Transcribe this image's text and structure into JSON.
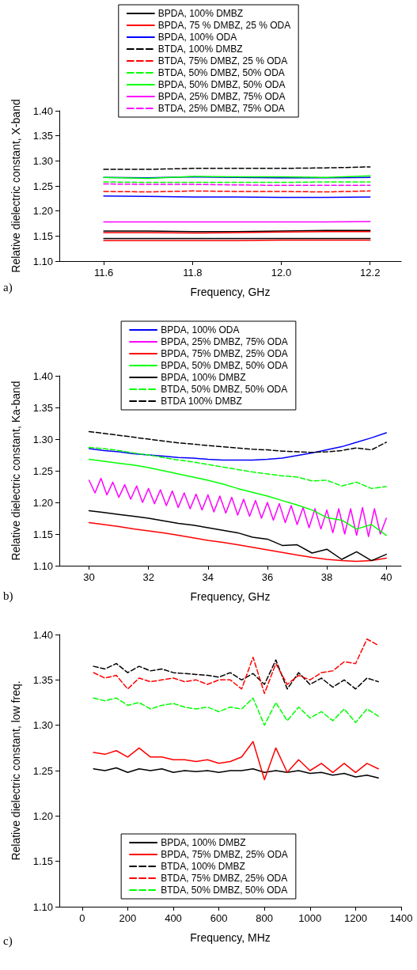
{
  "chart_data": [
    {
      "type": "line",
      "xlabel": "Frequency, GHz",
      "ylabel": "Relative dielectric constant, X-band",
      "annotations": [
        "a)"
      ],
      "marker": "none",
      "legend": "top",
      "grid": false,
      "x": [
        11.6,
        11.7,
        11.8,
        11.9,
        12.0,
        12.1,
        12.2
      ],
      "xlim": [
        11.5,
        12.27
      ],
      "xticks": [
        11.6,
        11.8,
        {
          "value": 12.0,
          "label": "12.0"
        },
        12.2
      ],
      "ylim": [
        1.1,
        1.4
      ],
      "yticks": [
        {
          "value": 1.1,
          "label": "1.10"
        },
        1.15,
        {
          "value": 1.2,
          "label": "1.20"
        },
        1.25,
        {
          "value": 1.3,
          "label": "1.30"
        },
        1.35,
        {
          "value": 1.4,
          "label": "1.40"
        }
      ],
      "series": [
        {
          "name": "BPDA, 100% DMBZ",
          "color": "#000000",
          "line_style": "solid",
          "values": [
            1.16,
            1.16,
            1.159,
            1.159,
            1.16,
            1.161,
            1.161
          ]
        },
        {
          "name": "BPDA, 75 % DMBZ, 25 % ODA",
          "color": "#ff0000",
          "line_style": "solid",
          "values": [
            1.157,
            1.157,
            1.156,
            1.157,
            1.158,
            1.159,
            1.159
          ]
        },
        {
          "name": "BPDA, 100% ODA",
          "color": "#0000ff",
          "line_style": "solid",
          "values": [
            1.267,
            1.266,
            1.268,
            1.267,
            1.266,
            1.266,
            1.267
          ]
        },
        {
          "name": "BTDA, 100% DMBZ",
          "color": "#000000",
          "line_style": "dashed",
          "values": [
            1.283,
            1.283,
            1.285,
            1.285,
            1.285,
            1.286,
            1.288
          ]
        },
        {
          "name": "BTDA, 75% DMBZ, 25 % ODA",
          "color": "#ff0000",
          "line_style": "dashed",
          "values": [
            1.239,
            1.238,
            1.24,
            1.239,
            1.239,
            1.238,
            1.24
          ]
        },
        {
          "name": "BTDA, 50% DMBZ, 50% ODA",
          "color": "#00ff00",
          "line_style": "dashed",
          "values": [
            1.258,
            1.257,
            1.257,
            1.257,
            1.257,
            1.258,
            1.258
          ]
        },
        {
          "name": "BPDA, 50% DMBZ, 50% ODA",
          "color": "#00ff00",
          "line_style": "solid",
          "values": [
            1.267,
            1.265,
            1.269,
            1.268,
            1.268,
            1.267,
            1.27
          ]
        },
        {
          "name": "BPDA, 25% DMBZ, 75% ODA",
          "color": "#ff00ff",
          "line_style": "solid",
          "values": [
            1.178,
            1.178,
            1.178,
            1.178,
            1.178,
            1.178,
            1.179
          ]
        },
        {
          "name": "BTDA, 25% DMBZ, 75% ODA",
          "color": "#ff00ff",
          "line_style": "dashed",
          "values": [
            1.254,
            1.253,
            1.253,
            1.252,
            1.251,
            1.251,
            1.251
          ]
        },
        {
          "color": "#0000ff",
          "line_style": "solid",
          "values": [
            1.23,
            1.229,
            1.228,
            1.228,
            1.227,
            1.227,
            1.228
          ]
        },
        {
          "color": "#000000",
          "line_style": "solid",
          "values": [
            1.145,
            1.145,
            1.145,
            1.145,
            1.145,
            1.145,
            1.145
          ]
        },
        {
          "color": "#ff0000",
          "line_style": "solid",
          "values": [
            1.141,
            1.141,
            1.141,
            1.141,
            1.142,
            1.142,
            1.142
          ]
        }
      ]
    },
    {
      "type": "line",
      "xlabel": "Frequency, GHz",
      "ylabel": "Relative dielectric constant, Ka-band",
      "annotations": [
        "b)"
      ],
      "marker": "none",
      "legend": "top",
      "grid": false,
      "x": [
        30,
        30.5,
        31,
        31.5,
        32,
        32.5,
        33,
        33.5,
        34,
        34.5,
        35,
        35.5,
        36,
        36.5,
        37,
        37.5,
        38,
        38.5,
        39,
        39.5,
        40
      ],
      "xlim": [
        29,
        40.5
      ],
      "xticks": [
        30,
        32,
        34,
        36,
        38,
        40
      ],
      "ylim": [
        1.1,
        1.4
      ],
      "yticks": [
        {
          "value": 1.1,
          "label": "1.10"
        },
        1.15,
        {
          "value": 1.2,
          "label": "1.20"
        },
        1.25,
        {
          "value": 1.3,
          "label": "1.30"
        },
        1.35,
        {
          "value": 1.4,
          "label": "1.40"
        }
      ],
      "series": [
        {
          "name": "BPDA, 100% ODA",
          "color": "#0000ff",
          "line_style": "solid",
          "values": [
            1.285,
            1.282,
            1.28,
            1.277,
            1.275,
            1.273,
            1.271,
            1.27,
            1.268,
            1.267,
            1.267,
            1.267,
            1.268,
            1.27,
            1.274,
            1.278,
            1.283,
            1.288,
            1.295,
            1.302,
            1.31
          ]
        },
        {
          "name": "BPDA, 25% DMBZ, 75% ODA",
          "color": "#ff00ff",
          "line_style": "solid",
          "x": [
            30,
            30.2,
            30.4,
            30.6,
            30.8,
            31,
            31.2,
            31.4,
            31.6,
            31.8,
            32,
            32.2,
            32.4,
            32.6,
            32.8,
            33,
            33.2,
            33.4,
            33.6,
            33.8,
            34,
            34.2,
            34.4,
            34.6,
            34.8,
            35,
            35.2,
            35.4,
            35.6,
            35.8,
            36,
            36.2,
            36.4,
            36.6,
            36.8,
            37,
            37.2,
            37.4,
            37.6,
            37.8,
            38,
            38.2,
            38.4,
            38.6,
            38.8,
            39,
            39.2,
            39.4,
            39.6,
            39.8,
            40
          ],
          "values": [
            1.235,
            1.215,
            1.238,
            1.212,
            1.232,
            1.208,
            1.228,
            1.205,
            1.226,
            1.2,
            1.222,
            1.198,
            1.22,
            1.195,
            1.218,
            1.192,
            1.215,
            1.19,
            1.213,
            1.188,
            1.212,
            1.185,
            1.21,
            1.183,
            1.208,
            1.18,
            1.205,
            1.178,
            1.203,
            1.175,
            1.2,
            1.172,
            1.198,
            1.168,
            1.195,
            1.165,
            1.192,
            1.16,
            1.19,
            1.158,
            1.188,
            1.152,
            1.19,
            1.15,
            1.19,
            1.148,
            1.192,
            1.146,
            1.19,
            1.15,
            1.175
          ]
        },
        {
          "name": "BPDA, 75% DMBZ, 25% ODA",
          "color": "#ff0000",
          "line_style": "solid",
          "values": [
            1.168,
            1.165,
            1.162,
            1.158,
            1.155,
            1.152,
            1.148,
            1.144,
            1.14,
            1.137,
            1.133,
            1.129,
            1.125,
            1.121,
            1.117,
            1.113,
            1.11,
            1.108,
            1.107,
            1.108,
            1.112
          ]
        },
        {
          "name": "BPDA, 50% DMBZ, 50% ODA",
          "color": "#00ff00",
          "line_style": "solid",
          "values": [
            1.268,
            1.265,
            1.262,
            1.259,
            1.255,
            1.25,
            1.245,
            1.24,
            1.235,
            1.229,
            1.222,
            1.216,
            1.21,
            1.203,
            1.196,
            1.188,
            1.176,
            1.172,
            1.158,
            1.165,
            1.148
          ]
        },
        {
          "name": "BPDA, 100% DMBZ",
          "color": "#000000",
          "line_style": "solid",
          "values": [
            1.187,
            1.184,
            1.181,
            1.178,
            1.175,
            1.171,
            1.167,
            1.164,
            1.16,
            1.156,
            1.152,
            1.145,
            1.142,
            1.132,
            1.133,
            1.12,
            1.126,
            1.11,
            1.122,
            1.108,
            1.118
          ]
        },
        {
          "name": "BTDA, 50% DMBZ, 50% ODA",
          "color": "#00ff00",
          "line_style": "dashed",
          "values": [
            1.287,
            1.285,
            1.282,
            1.278,
            1.275,
            1.271,
            1.267,
            1.264,
            1.26,
            1.256,
            1.252,
            1.248,
            1.245,
            1.242,
            1.24,
            1.234,
            1.235,
            1.226,
            1.232,
            1.222,
            1.225
          ]
        },
        {
          "name": "BTDA 100% DMBZ",
          "color": "#000000",
          "line_style": "dashed",
          "values": [
            1.312,
            1.309,
            1.306,
            1.303,
            1.3,
            1.297,
            1.294,
            1.292,
            1.29,
            1.288,
            1.286,
            1.284,
            1.283,
            1.281,
            1.28,
            1.279,
            1.28,
            1.282,
            1.286,
            1.283,
            1.295
          ]
        }
      ]
    },
    {
      "type": "line",
      "xlabel": "Frequency, MHz",
      "ylabel": "Relative dielectric constant, low freq.",
      "annotations": [
        "c)"
      ],
      "marker": "none",
      "legend": "bottom",
      "grid": false,
      "x": [
        50,
        100,
        150,
        200,
        250,
        300,
        350,
        400,
        450,
        500,
        550,
        600,
        650,
        700,
        750,
        800,
        850,
        900,
        950,
        1000,
        1050,
        1100,
        1150,
        1200,
        1250,
        1300
      ],
      "xlim": [
        -100,
        1400
      ],
      "xticks": [
        0,
        200,
        400,
        600,
        800,
        1000,
        1200,
        1400
      ],
      "ylim": [
        1.1,
        1.4
      ],
      "yticks": [
        {
          "value": 1.1,
          "label": "1.10"
        },
        1.15,
        {
          "value": 1.2,
          "label": "1.20"
        },
        1.25,
        {
          "value": 1.3,
          "label": "1.30"
        },
        1.35,
        {
          "value": 1.4,
          "label": "1.40"
        }
      ],
      "series": [
        {
          "name": "BPDA, 100% DMBZ",
          "color": "#000000",
          "line_style": "solid",
          "values": [
            1.252,
            1.25,
            1.253,
            1.248,
            1.252,
            1.25,
            1.252,
            1.248,
            1.25,
            1.249,
            1.25,
            1.248,
            1.25,
            1.25,
            1.252,
            1.248,
            1.25,
            1.248,
            1.25,
            1.247,
            1.248,
            1.245,
            1.247,
            1.243,
            1.245,
            1.242
          ]
        },
        {
          "name": "BPDA, 75% DMBZ, 25% ODA",
          "color": "#ff0000",
          "line_style": "solid",
          "values": [
            1.27,
            1.268,
            1.272,
            1.265,
            1.275,
            1.265,
            1.265,
            1.262,
            1.262,
            1.26,
            1.262,
            1.258,
            1.26,
            1.265,
            1.282,
            1.24,
            1.275,
            1.248,
            1.262,
            1.25,
            1.258,
            1.248,
            1.258,
            1.248,
            1.258,
            1.252
          ]
        },
        {
          "name": "BTDA, 100% DMBZ",
          "color": "#000000",
          "line_style": "dashed",
          "values": [
            1.365,
            1.362,
            1.368,
            1.358,
            1.365,
            1.36,
            1.362,
            1.358,
            1.357,
            1.356,
            1.355,
            1.353,
            1.358,
            1.35,
            1.357,
            1.345,
            1.372,
            1.34,
            1.358,
            1.345,
            1.352,
            1.342,
            1.35,
            1.34,
            1.352,
            1.348
          ]
        },
        {
          "name": "BTDA, 75% DMBZ, 25% ODA",
          "color": "#ff0000",
          "line_style": "dashed",
          "values": [
            1.358,
            1.352,
            1.355,
            1.34,
            1.352,
            1.348,
            1.35,
            1.352,
            1.348,
            1.35,
            1.345,
            1.35,
            1.35,
            1.34,
            1.375,
            1.335,
            1.368,
            1.345,
            1.355,
            1.35,
            1.358,
            1.36,
            1.37,
            1.368,
            1.395,
            1.388
          ]
        },
        {
          "name": "BTDA, 50% DMBZ, 50% ODA",
          "color": "#00ff00",
          "line_style": "dashed",
          "values": [
            1.33,
            1.327,
            1.33,
            1.322,
            1.325,
            1.318,
            1.322,
            1.324,
            1.32,
            1.318,
            1.32,
            1.315,
            1.32,
            1.318,
            1.33,
            1.3,
            1.325,
            1.305,
            1.32,
            1.308,
            1.315,
            1.305,
            1.318,
            1.303,
            1.318,
            1.31
          ]
        }
      ]
    }
  ]
}
